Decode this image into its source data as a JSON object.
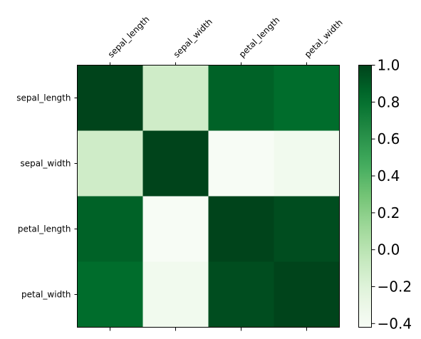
{
  "chart_data": {
    "type": "heatmap",
    "colormap": "Greens",
    "x_categories": [
      "sepal_length",
      "sepal_width",
      "petal_length",
      "petal_width"
    ],
    "y_categories": [
      "sepal_length",
      "sepal_width",
      "petal_length",
      "petal_width"
    ],
    "values": [
      [
        1.0,
        -0.11,
        0.87,
        0.82
      ],
      [
        -0.11,
        1.0,
        -0.42,
        -0.36
      ],
      [
        0.87,
        -0.42,
        1.0,
        0.96
      ],
      [
        0.82,
        -0.36,
        0.96,
        1.0
      ]
    ],
    "vmin": -0.42,
    "vmax": 1.0,
    "colorbar_ticks": [
      "1.0",
      "0.8",
      "0.6",
      "0.4",
      "0.2",
      "0.0",
      "−0.2",
      "−0.4"
    ],
    "colorbar_tick_values": [
      1.0,
      0.8,
      0.6,
      0.4,
      0.2,
      0.0,
      -0.2,
      -0.4
    ],
    "x_tick_position": "top",
    "grid": false
  }
}
